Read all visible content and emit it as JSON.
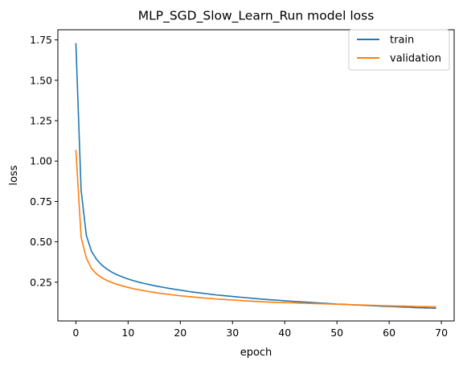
{
  "chart_data": {
    "type": "line",
    "title": "MLP_SGD_Slow_Learn_Run model loss",
    "xlabel": "epoch",
    "ylabel": "loss",
    "xlim": [
      -3.45,
      72.45
    ],
    "ylim": [
      0.0104,
      1.8127
    ],
    "xticks": [
      0,
      10,
      20,
      30,
      40,
      50,
      60,
      70
    ],
    "yticks": [
      0.25,
      0.5,
      0.75,
      1.0,
      1.25,
      1.5,
      1.75
    ],
    "ytick_labels": [
      "0.25",
      "0.50",
      "0.75",
      "1.00",
      "1.25",
      "1.50",
      "1.75"
    ],
    "grid": false,
    "legend_position": "top-right",
    "series": [
      {
        "name": "train",
        "color": "#1f77b4",
        "x": [
          0,
          1,
          2,
          3,
          4,
          5,
          6,
          7,
          8,
          9,
          10,
          11,
          12,
          13,
          14,
          15,
          16,
          17,
          18,
          19,
          20,
          21,
          22,
          23,
          24,
          25,
          26,
          27,
          28,
          29,
          30,
          31,
          32,
          33,
          34,
          35,
          36,
          37,
          38,
          39,
          40,
          41,
          42,
          43,
          44,
          45,
          46,
          47,
          48,
          49,
          50,
          51,
          52,
          53,
          54,
          55,
          56,
          57,
          58,
          59,
          60,
          61,
          62,
          63,
          64,
          65,
          66,
          67,
          68,
          69
        ],
        "y": [
          1.73,
          0.82,
          0.54,
          0.44,
          0.39,
          0.355,
          0.33,
          0.31,
          0.295,
          0.282,
          0.27,
          0.26,
          0.251,
          0.243,
          0.236,
          0.229,
          0.223,
          0.217,
          0.211,
          0.206,
          0.201,
          0.196,
          0.191,
          0.187,
          0.183,
          0.179,
          0.175,
          0.171,
          0.168,
          0.165,
          0.162,
          0.159,
          0.156,
          0.153,
          0.15,
          0.147,
          0.145,
          0.142,
          0.14,
          0.138,
          0.135,
          0.133,
          0.131,
          0.129,
          0.127,
          0.125,
          0.123,
          0.121,
          0.119,
          0.117,
          0.115,
          0.114,
          0.112,
          0.11,
          0.109,
          0.107,
          0.106,
          0.104,
          0.103,
          0.101,
          0.1,
          0.099,
          0.097,
          0.096,
          0.095,
          0.093,
          0.092,
          0.091,
          0.09,
          0.089
        ]
      },
      {
        "name": "validation",
        "color": "#ff7f0e",
        "x": [
          0,
          1,
          2,
          3,
          4,
          5,
          6,
          7,
          8,
          9,
          10,
          11,
          12,
          13,
          14,
          15,
          16,
          17,
          18,
          19,
          20,
          21,
          22,
          23,
          24,
          25,
          26,
          27,
          28,
          29,
          30,
          31,
          32,
          33,
          34,
          35,
          36,
          37,
          38,
          39,
          40,
          41,
          42,
          43,
          44,
          45,
          46,
          47,
          48,
          49,
          50,
          51,
          52,
          53,
          54,
          55,
          56,
          57,
          58,
          59,
          60,
          61,
          62,
          63,
          64,
          65,
          66,
          67,
          68,
          69
        ],
        "y": [
          1.07,
          0.53,
          0.4,
          0.335,
          0.3,
          0.277,
          0.26,
          0.247,
          0.236,
          0.226,
          0.218,
          0.21,
          0.204,
          0.198,
          0.192,
          0.187,
          0.182,
          0.178,
          0.174,
          0.17,
          0.166,
          0.163,
          0.16,
          0.157,
          0.154,
          0.151,
          0.149,
          0.146,
          0.144,
          0.142,
          0.14,
          0.138,
          0.136,
          0.134,
          0.132,
          0.13,
          0.129,
          0.127,
          0.126,
          0.125,
          0.124,
          0.123,
          0.122,
          0.121,
          0.12,
          0.119,
          0.118,
          0.117,
          0.116,
          0.115,
          0.114,
          0.113,
          0.112,
          0.111,
          0.11,
          0.109,
          0.108,
          0.107,
          0.106,
          0.105,
          0.104,
          0.103,
          0.102,
          0.102,
          0.101,
          0.1,
          0.099,
          0.099,
          0.098,
          0.097
        ]
      }
    ]
  }
}
